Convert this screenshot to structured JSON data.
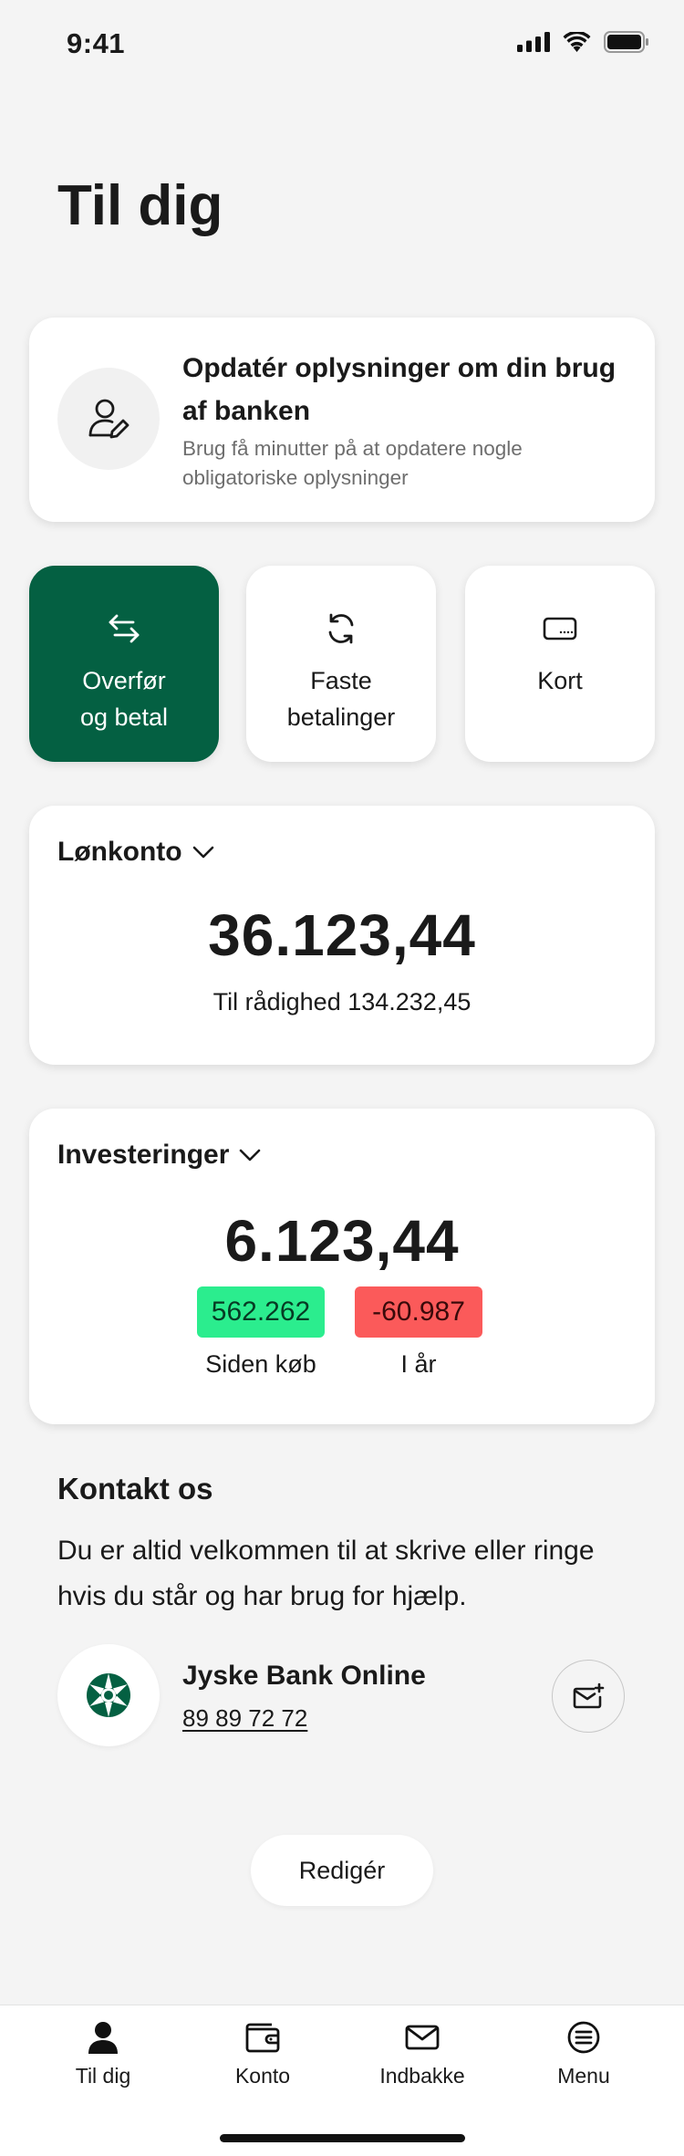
{
  "status_bar": {
    "time": "9:41"
  },
  "page": {
    "title": "Til dig"
  },
  "update_card": {
    "icon": "user-edit-icon",
    "title": "Opdatér oplysninger om din brug af banken",
    "subtitle": "Brug få minutter på at opdatere nogle obligatoriske oplysninger"
  },
  "quick_actions": [
    {
      "label": "Overfør\nog betal",
      "icon": "transfer-arrows-icon"
    },
    {
      "label": "Faste\nbetalinger",
      "icon": "recurring-icon"
    },
    {
      "label": "Kort",
      "icon": "card-icon"
    }
  ],
  "account": {
    "name": "Lønkonto",
    "balance": "36.123,44",
    "available": "Til rådighed 134.232,45"
  },
  "investments": {
    "name": "Investeringer",
    "balance": "6.123,44",
    "since_purchase_value": "562.262",
    "since_purchase_label": "Siden køb",
    "this_year_value": "-60.987",
    "this_year_label": "I år",
    "positive_color": "#2bed8e",
    "negative_color": "#fb5a5a"
  },
  "contact": {
    "title": "Kontakt os",
    "text": "Du er altid velkommen til at skrive eller ringe hvis du står og har brug for hjælp.",
    "bank_name": "Jyske Bank Online",
    "phone": "89 89 72 72"
  },
  "edit_button": {
    "label": "Redigér"
  },
  "tab_bar": [
    {
      "label": "Til dig",
      "icon": "person-icon",
      "active": true
    },
    {
      "label": "Konto",
      "icon": "wallet-icon"
    },
    {
      "label": "Indbakke",
      "icon": "envelope-icon"
    },
    {
      "label": "Menu",
      "icon": "menu-icon"
    }
  ],
  "colors": {
    "brand_green": "#046042",
    "background": "#f4f4f4"
  }
}
